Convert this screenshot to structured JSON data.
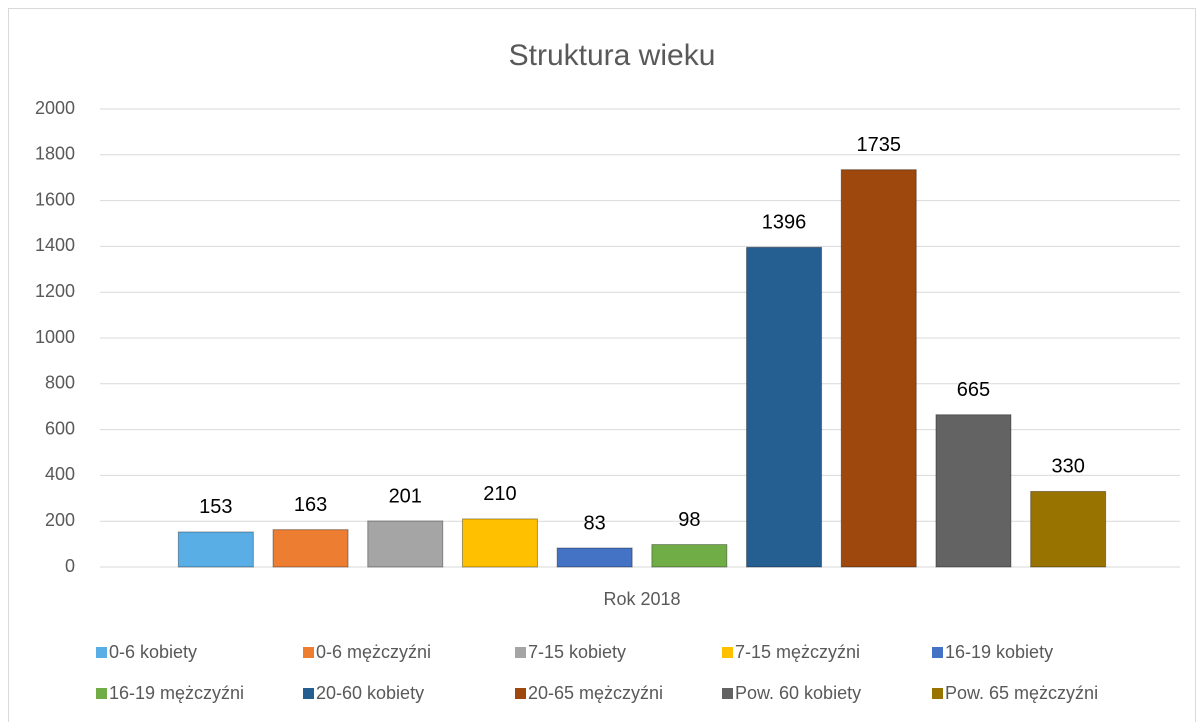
{
  "chart_data": {
    "type": "bar",
    "title": "Struktura wieku",
    "categories": [
      "Rok 2018"
    ],
    "series": [
      {
        "name": "0-6 kobiety",
        "color": "#5aaee6",
        "values": [
          153
        ]
      },
      {
        "name": "0-6 mężczyźni",
        "color": "#ed7d31",
        "values": [
          163
        ]
      },
      {
        "name": "7-15 kobiety",
        "color": "#a5a5a5",
        "values": [
          201
        ]
      },
      {
        "name": "7-15 mężczyźni",
        "color": "#ffc000",
        "values": [
          210
        ]
      },
      {
        "name": "16-19 kobiety",
        "color": "#4472c4",
        "values": [
          83
        ]
      },
      {
        "name": "16-19 mężczyźni",
        "color": "#70ad47",
        "values": [
          98
        ]
      },
      {
        "name": "20-60 kobiety",
        "color": "#255e91",
        "values": [
          1396
        ]
      },
      {
        "name": "20-65 mężczyźni",
        "color": "#9e480e",
        "values": [
          1735
        ]
      },
      {
        "name": "Pow. 60 kobiety",
        "color": "#636363",
        "values": [
          665
        ]
      },
      {
        "name": "Pow. 65 mężczyźni",
        "color": "#997300",
        "values": [
          330
        ]
      }
    ],
    "ylim": [
      0,
      2000
    ],
    "yticks": [
      0,
      200,
      400,
      600,
      800,
      1000,
      1200,
      1400,
      1600,
      1800,
      2000
    ],
    "grid": true,
    "legend": "bottom"
  }
}
